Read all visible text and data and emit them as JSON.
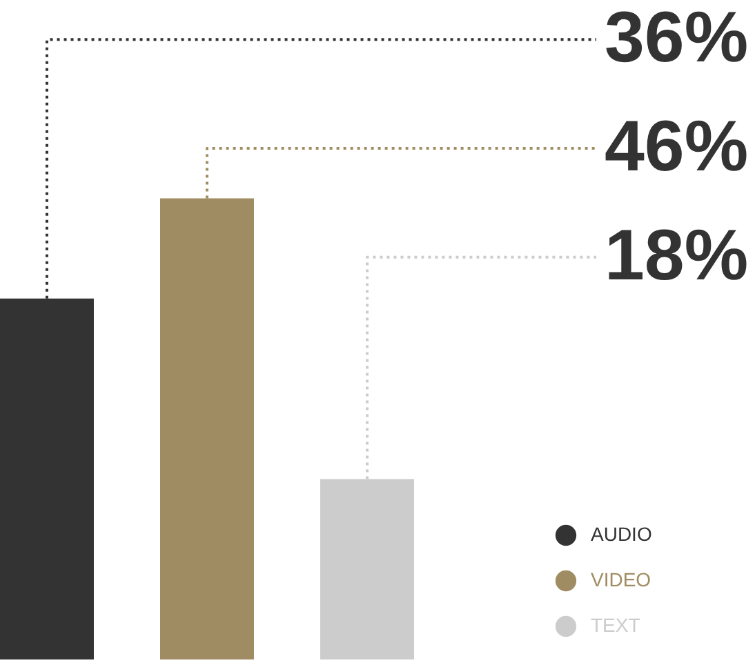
{
  "chart_data": {
    "type": "bar",
    "stacked": true,
    "categories": [
      null,
      null,
      null
    ],
    "series": [
      {
        "name": "AUDIO",
        "color": "#333333",
        "values": [
          36,
          null,
          null
        ],
        "value_labels": [
          "36%",
          null,
          null
        ]
      },
      {
        "name": "VIDEO",
        "color": "#a08c62",
        "values": [
          null,
          46,
          null
        ],
        "value_labels": [
          null,
          "46%",
          null
        ]
      },
      {
        "name": "TEXT",
        "color": "#cccccc",
        "values": [
          null,
          null,
          18
        ],
        "value_labels": [
          null,
          null,
          "18%"
        ]
      }
    ],
    "legend": "bottom right",
    "tick_labels": false
  }
}
